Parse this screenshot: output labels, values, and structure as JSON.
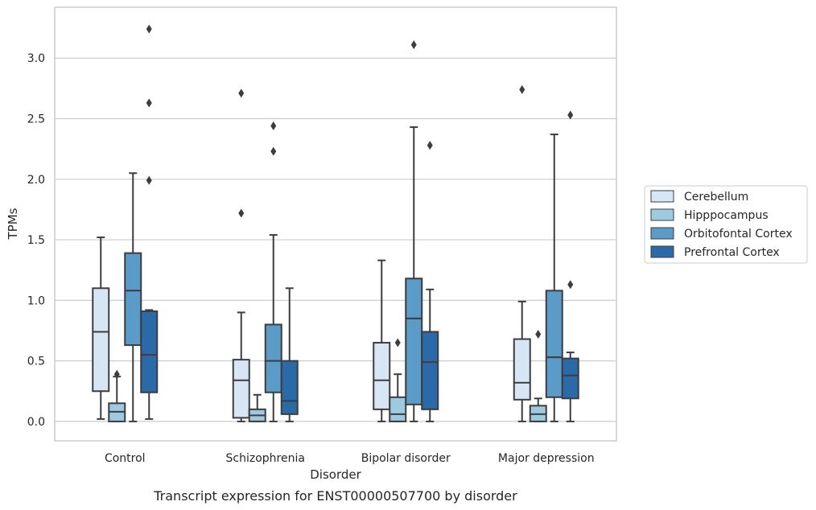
{
  "caption": "Transcript expression for ENST00000507700 by disorder",
  "chart_data": {
    "type": "box",
    "xlabel": "Disorder",
    "ylabel": "TPMs",
    "ylim": [
      -0.16,
      3.42
    ],
    "yticks": [
      "0.0",
      "0.5",
      "1.0",
      "1.5",
      "2.0",
      "2.5",
      "3.0"
    ],
    "grid": "horizontal",
    "legend_position": "right",
    "categories": [
      "Control",
      "Schizophrenia",
      "Bipolar disorder",
      "Major depression"
    ],
    "series": [
      {
        "name": "Cerebellum",
        "color": "#d6e6f4",
        "boxes": [
          {
            "whisker_low": 0.02,
            "q1": 0.25,
            "median": 0.74,
            "q3": 1.1,
            "whisker_high": 1.52,
            "outliers": []
          },
          {
            "whisker_low": 0.0,
            "q1": 0.03,
            "median": 0.34,
            "q3": 0.51,
            "whisker_high": 0.9,
            "outliers": [
              1.72,
              2.71
            ]
          },
          {
            "whisker_low": 0.0,
            "q1": 0.1,
            "median": 0.34,
            "q3": 0.65,
            "whisker_high": 1.33,
            "outliers": []
          },
          {
            "whisker_low": 0.0,
            "q1": 0.18,
            "median": 0.32,
            "q3": 0.68,
            "whisker_high": 0.99,
            "outliers": [
              2.74
            ]
          }
        ]
      },
      {
        "name": "Hipppocampus",
        "color": "#9ecae1",
        "boxes": [
          {
            "whisker_low": 0.0,
            "q1": 0.0,
            "median": 0.08,
            "q3": 0.15,
            "whisker_high": 0.37,
            "outliers": [
              0.39
            ]
          },
          {
            "whisker_low": 0.0,
            "q1": 0.0,
            "median": 0.05,
            "q3": 0.1,
            "whisker_high": 0.22,
            "outliers": []
          },
          {
            "whisker_low": 0.0,
            "q1": 0.0,
            "median": 0.06,
            "q3": 0.2,
            "whisker_high": 0.39,
            "outliers": [
              0.65
            ]
          },
          {
            "whisker_low": 0.0,
            "q1": 0.0,
            "median": 0.06,
            "q3": 0.13,
            "whisker_high": 0.19,
            "outliers": [
              0.72
            ]
          }
        ]
      },
      {
        "name": "Orbitofontal Cortex",
        "color": "#5a9bc8",
        "boxes": [
          {
            "whisker_low": 0.0,
            "q1": 0.63,
            "median": 1.08,
            "q3": 1.39,
            "whisker_high": 2.05,
            "outliers": []
          },
          {
            "whisker_low": 0.0,
            "q1": 0.24,
            "median": 0.5,
            "q3": 0.8,
            "whisker_high": 1.54,
            "outliers": [
              2.23,
              2.44
            ]
          },
          {
            "whisker_low": 0.0,
            "q1": 0.14,
            "median": 0.85,
            "q3": 1.18,
            "whisker_high": 2.43,
            "outliers": [
              3.11
            ]
          },
          {
            "whisker_low": 0.0,
            "q1": 0.2,
            "median": 0.53,
            "q3": 1.08,
            "whisker_high": 2.37,
            "outliers": []
          }
        ]
      },
      {
        "name": "Prefrontal Cortex",
        "color": "#2b6aa8",
        "boxes": [
          {
            "whisker_low": 0.02,
            "q1": 0.24,
            "median": 0.55,
            "q3": 0.91,
            "whisker_high": 0.92,
            "outliers": [
              1.99,
              2.63,
              3.24
            ]
          },
          {
            "whisker_low": 0.0,
            "q1": 0.06,
            "median": 0.17,
            "q3": 0.5,
            "whisker_high": 1.1,
            "outliers": []
          },
          {
            "whisker_low": 0.0,
            "q1": 0.1,
            "median": 0.49,
            "q3": 0.74,
            "whisker_high": 1.09,
            "outliers": [
              2.28
            ]
          },
          {
            "whisker_low": 0.0,
            "q1": 0.19,
            "median": 0.38,
            "q3": 0.52,
            "whisker_high": 0.57,
            "outliers": [
              1.13,
              2.53
            ]
          }
        ]
      }
    ]
  }
}
